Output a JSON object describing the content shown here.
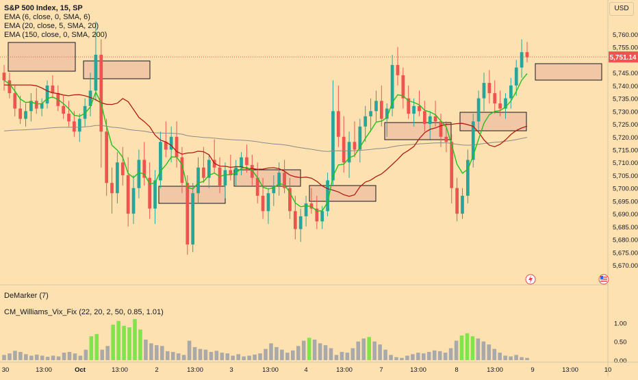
{
  "legend": {
    "symbol": "S&P 500 Index, 15, SP",
    "ema1": "EMA (6, close, 0, SMA, 6)",
    "ema2": "EMA (20, close, 5, SMA, 20)",
    "ema3": "EMA (150, close, 0, SMA, 200)",
    "indicator1": "DeMarker (7)",
    "indicator2": "CM_Williams_Vix_Fix (22, 20, 2, 50, 0.85, 1.01)"
  },
  "currency": "USD",
  "colors": {
    "background": "#fde1b0",
    "up": "#26a69a",
    "down": "#ef5350",
    "ema_fast": "#22c11c",
    "ema_mid": "#b11a0c",
    "ema_slow": "#8a8a8a",
    "zone_fill": "#f2c7a6",
    "vix_normal": "#a9a9a9",
    "vix_high": "#7fe54a"
  },
  "chart_data": [
    {
      "type": "candlestick",
      "title": "S&P 500 Index, 15, SP",
      "ylim": [
        5666,
        5768
      ],
      "y_ticks": [
        "5,670.00",
        "5,675.00",
        "5,680.00",
        "5,685.00",
        "5,690.00",
        "5,695.00",
        "5,700.00",
        "5,705.00",
        "5,710.00",
        "5,715.00",
        "5,720.00",
        "5,725.00",
        "5,730.00",
        "5,735.00",
        "5,740.00",
        "5,745.00",
        "5,750.00",
        "5,755.00",
        "5,760.00"
      ],
      "x_tick_labels": [
        "30",
        "13:00",
        "Oct",
        "13:00",
        "2",
        "13:00",
        "3",
        "13:00",
        "4",
        "13:00",
        "7",
        "13:00",
        "8",
        "13:00",
        "9",
        "13:00",
        "10"
      ],
      "last_price": 5751.14,
      "last_price_label": "5,751.14",
      "grid": false,
      "candles": [
        [
          5745,
          5748,
          5738,
          5742
        ],
        [
          5742,
          5745,
          5735,
          5737
        ],
        [
          5737,
          5740,
          5728,
          5731
        ],
        [
          5731,
          5736,
          5725,
          5727
        ],
        [
          5727,
          5733,
          5724,
          5730
        ],
        [
          5730,
          5737,
          5726,
          5734
        ],
        [
          5734,
          5739,
          5729,
          5731
        ],
        [
          5731,
          5735,
          5728,
          5733
        ],
        [
          5733,
          5742,
          5731,
          5740
        ],
        [
          5740,
          5744,
          5735,
          5737
        ],
        [
          5737,
          5740,
          5730,
          5732
        ],
        [
          5732,
          5736,
          5727,
          5729
        ],
        [
          5729,
          5734,
          5724,
          5726
        ],
        [
          5726,
          5730,
          5720,
          5722
        ],
        [
          5722,
          5729,
          5718,
          5727
        ],
        [
          5727,
          5735,
          5724,
          5732
        ],
        [
          5732,
          5745,
          5728,
          5738
        ],
        [
          5738,
          5765,
          5734,
          5752
        ],
        [
          5752,
          5758,
          5708,
          5722
        ],
        [
          5722,
          5727,
          5697,
          5702
        ],
        [
          5702,
          5708,
          5690,
          5698
        ],
        [
          5698,
          5714,
          5694,
          5710
        ],
        [
          5710,
          5716,
          5701,
          5705
        ],
        [
          5705,
          5712,
          5685,
          5690
        ],
        [
          5690,
          5705,
          5686,
          5700
        ],
        [
          5700,
          5715,
          5696,
          5711
        ],
        [
          5711,
          5718,
          5701,
          5704
        ],
        [
          5704,
          5710,
          5688,
          5692
        ],
        [
          5692,
          5707,
          5686,
          5703
        ],
        [
          5703,
          5722,
          5700,
          5718
        ],
        [
          5718,
          5726,
          5712,
          5715
        ],
        [
          5715,
          5724,
          5710,
          5720
        ],
        [
          5720,
          5726,
          5708,
          5712
        ],
        [
          5712,
          5716,
          5698,
          5702
        ],
        [
          5702,
          5705,
          5674,
          5678
        ],
        [
          5678,
          5702,
          5675,
          5698
        ],
        [
          5698,
          5712,
          5694,
          5708
        ],
        [
          5708,
          5716,
          5702,
          5704
        ],
        [
          5704,
          5713,
          5700,
          5711
        ],
        [
          5711,
          5719,
          5706,
          5708
        ],
        [
          5708,
          5712,
          5698,
          5701
        ],
        [
          5701,
          5710,
          5696,
          5707
        ],
        [
          5707,
          5713,
          5703,
          5705
        ],
        [
          5705,
          5711,
          5701,
          5708
        ],
        [
          5708,
          5714,
          5705,
          5712
        ],
        [
          5712,
          5717,
          5706,
          5709
        ],
        [
          5709,
          5713,
          5701,
          5704
        ],
        [
          5704,
          5710,
          5694,
          5697
        ],
        [
          5697,
          5704,
          5688,
          5691
        ],
        [
          5691,
          5700,
          5686,
          5698
        ],
        [
          5698,
          5705,
          5693,
          5701
        ],
        [
          5701,
          5710,
          5697,
          5706
        ],
        [
          5706,
          5711,
          5698,
          5700
        ],
        [
          5700,
          5704,
          5688,
          5691
        ],
        [
          5691,
          5697,
          5680,
          5684
        ],
        [
          5684,
          5692,
          5679,
          5689
        ],
        [
          5689,
          5697,
          5685,
          5694
        ],
        [
          5694,
          5700,
          5690,
          5692
        ],
        [
          5692,
          5697,
          5684,
          5687
        ],
        [
          5687,
          5693,
          5684,
          5691
        ],
        [
          5691,
          5706,
          5689,
          5703
        ],
        [
          5703,
          5742,
          5701,
          5730
        ],
        [
          5730,
          5740,
          5716,
          5720
        ],
        [
          5720,
          5728,
          5706,
          5710
        ],
        [
          5710,
          5722,
          5704,
          5718
        ],
        [
          5718,
          5726,
          5712,
          5715
        ],
        [
          5715,
          5727,
          5710,
          5724
        ],
        [
          5724,
          5732,
          5718,
          5728
        ],
        [
          5728,
          5735,
          5722,
          5730
        ],
        [
          5730,
          5738,
          5726,
          5734
        ],
        [
          5734,
          5740,
          5724,
          5727
        ],
        [
          5727,
          5733,
          5720,
          5731
        ],
        [
          5731,
          5752,
          5728,
          5748
        ],
        [
          5748,
          5755,
          5740,
          5744
        ],
        [
          5744,
          5747,
          5731,
          5735
        ],
        [
          5735,
          5740,
          5727,
          5729
        ],
        [
          5729,
          5735,
          5724,
          5732
        ],
        [
          5732,
          5738,
          5728,
          5730
        ],
        [
          5730,
          5734,
          5722,
          5725
        ],
        [
          5725,
          5730,
          5719,
          5728
        ],
        [
          5728,
          5734,
          5724,
          5726
        ],
        [
          5726,
          5729,
          5716,
          5720
        ],
        [
          5720,
          5726,
          5714,
          5718
        ],
        [
          5718,
          5721,
          5694,
          5700
        ],
        [
          5700,
          5704,
          5687,
          5690
        ],
        [
          5690,
          5700,
          5688,
          5697
        ],
        [
          5697,
          5715,
          5694,
          5711
        ],
        [
          5711,
          5729,
          5708,
          5726
        ],
        [
          5726,
          5738,
          5722,
          5735
        ],
        [
          5735,
          5745,
          5730,
          5741
        ],
        [
          5741,
          5746,
          5733,
          5737
        ],
        [
          5737,
          5742,
          5729,
          5733
        ],
        [
          5733,
          5738,
          5728,
          5731
        ],
        [
          5731,
          5737,
          5727,
          5735
        ],
        [
          5735,
          5743,
          5731,
          5740
        ],
        [
          5740,
          5750,
          5736,
          5747
        ],
        [
          5747,
          5758,
          5743,
          5753
        ],
        [
          5753,
          5757,
          5749,
          5751
        ]
      ]
    },
    {
      "type": "bar",
      "title": "CM_Williams_Vix_Fix (22, 20, 2, 50, 0.85, 1.01)",
      "ylim": [
        0,
        1.1
      ],
      "y_ticks": [
        "0.00",
        "0.50",
        "1.00"
      ],
      "values": [
        0.14,
        0.18,
        0.25,
        0.22,
        0.16,
        0.12,
        0.15,
        0.12,
        0.09,
        0.12,
        0.1,
        0.2,
        0.22,
        0.18,
        0.12,
        0.28,
        0.64,
        0.7,
        0.28,
        0.38,
        0.95,
        1.05,
        0.92,
        0.88,
        1.1,
        0.82,
        0.55,
        0.45,
        0.4,
        0.38,
        0.24,
        0.22,
        0.18,
        0.14,
        0.52,
        0.35,
        0.3,
        0.28,
        0.22,
        0.25,
        0.2,
        0.18,
        0.12,
        0.16,
        0.1,
        0.12,
        0.15,
        0.18,
        0.3,
        0.45,
        0.35,
        0.28,
        0.2,
        0.26,
        0.38,
        0.52,
        0.6,
        0.55,
        0.45,
        0.4,
        0.32,
        0.14,
        0.22,
        0.2,
        0.32,
        0.5,
        0.58,
        0.62,
        0.5,
        0.42,
        0.28,
        0.14,
        0.08,
        0.06,
        0.12,
        0.16,
        0.2,
        0.18,
        0.22,
        0.26,
        0.24,
        0.2,
        0.32,
        0.52,
        0.66,
        0.72,
        0.64,
        0.58,
        0.5,
        0.42,
        0.3,
        0.2,
        0.12,
        0.1,
        0.14,
        0.08,
        0.06
      ],
      "highlight_threshold": 0.6
    }
  ]
}
